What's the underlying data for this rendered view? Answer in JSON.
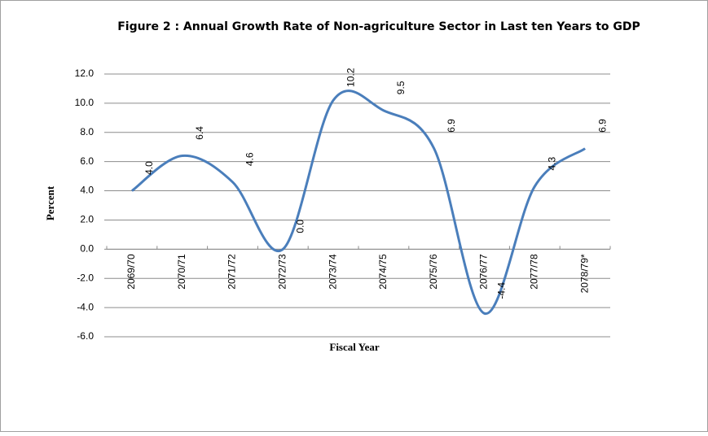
{
  "chart_data": {
    "type": "line",
    "title": "Figure  2 :  Annual Growth Rate of Non-agriculture Sector in Last ten Years to GDP",
    "xlabel": "Fiscal Year",
    "ylabel": "Percent",
    "categories": [
      "2069/70",
      "2070/71",
      "2071/72",
      "2072/73",
      "2073/74",
      "2074/75",
      "2075/76",
      "2076/77",
      "2077/78",
      "2078/79*"
    ],
    "series": [
      {
        "name": "Growth Rate",
        "color": "#4a7ebb",
        "values": [
          4.0,
          6.4,
          4.6,
          0.0,
          10.2,
          9.5,
          6.9,
          -4.4,
          4.3,
          6.9
        ],
        "value_labels": [
          "4.0",
          "6.4",
          "4.6",
          "0.0",
          "10.2",
          "9.5",
          "6.9",
          "-4.4",
          "4.3",
          "6.9"
        ]
      }
    ],
    "ylim": [
      -6,
      12
    ],
    "yticks": [
      {
        "value": -6,
        "label": "-6.0"
      },
      {
        "value": -4,
        "label": "-4.0"
      },
      {
        "value": -2,
        "label": "-2.0"
      },
      {
        "value": 0,
        "label": "0.0"
      },
      {
        "value": 2,
        "label": "2.0"
      },
      {
        "value": 4,
        "label": "4.0"
      },
      {
        "value": 6,
        "label": "6.0"
      },
      {
        "value": 8,
        "label": "8.0"
      },
      {
        "value": 10,
        "label": "10.0"
      },
      {
        "value": 12,
        "label": "12.0"
      }
    ],
    "grid": true
  }
}
